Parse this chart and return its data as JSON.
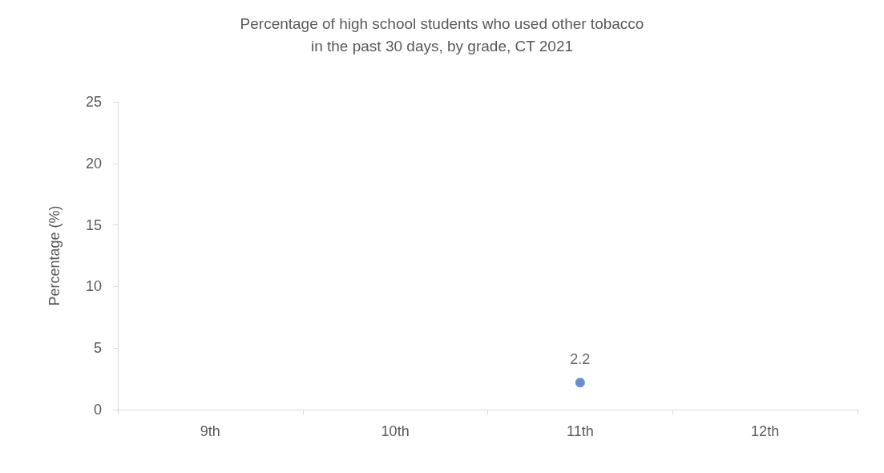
{
  "chart_data": {
    "type": "scatter",
    "title": "Percentage of high school students who used other tobacco\nin the past 30 days, by grade, CT 2021",
    "ylabel": "Percentage (%)",
    "categories": [
      "9th",
      "10th",
      "11th",
      "12th"
    ],
    "series": [
      {
        "color": "#4472c4",
        "values": [
          null,
          null,
          2.2,
          null
        ]
      }
    ],
    "ylim": [
      0,
      25
    ],
    "yticks": [
      0,
      5,
      10,
      15,
      20,
      25
    ],
    "grid": false,
    "marker": "circle",
    "data_labels": true
  }
}
